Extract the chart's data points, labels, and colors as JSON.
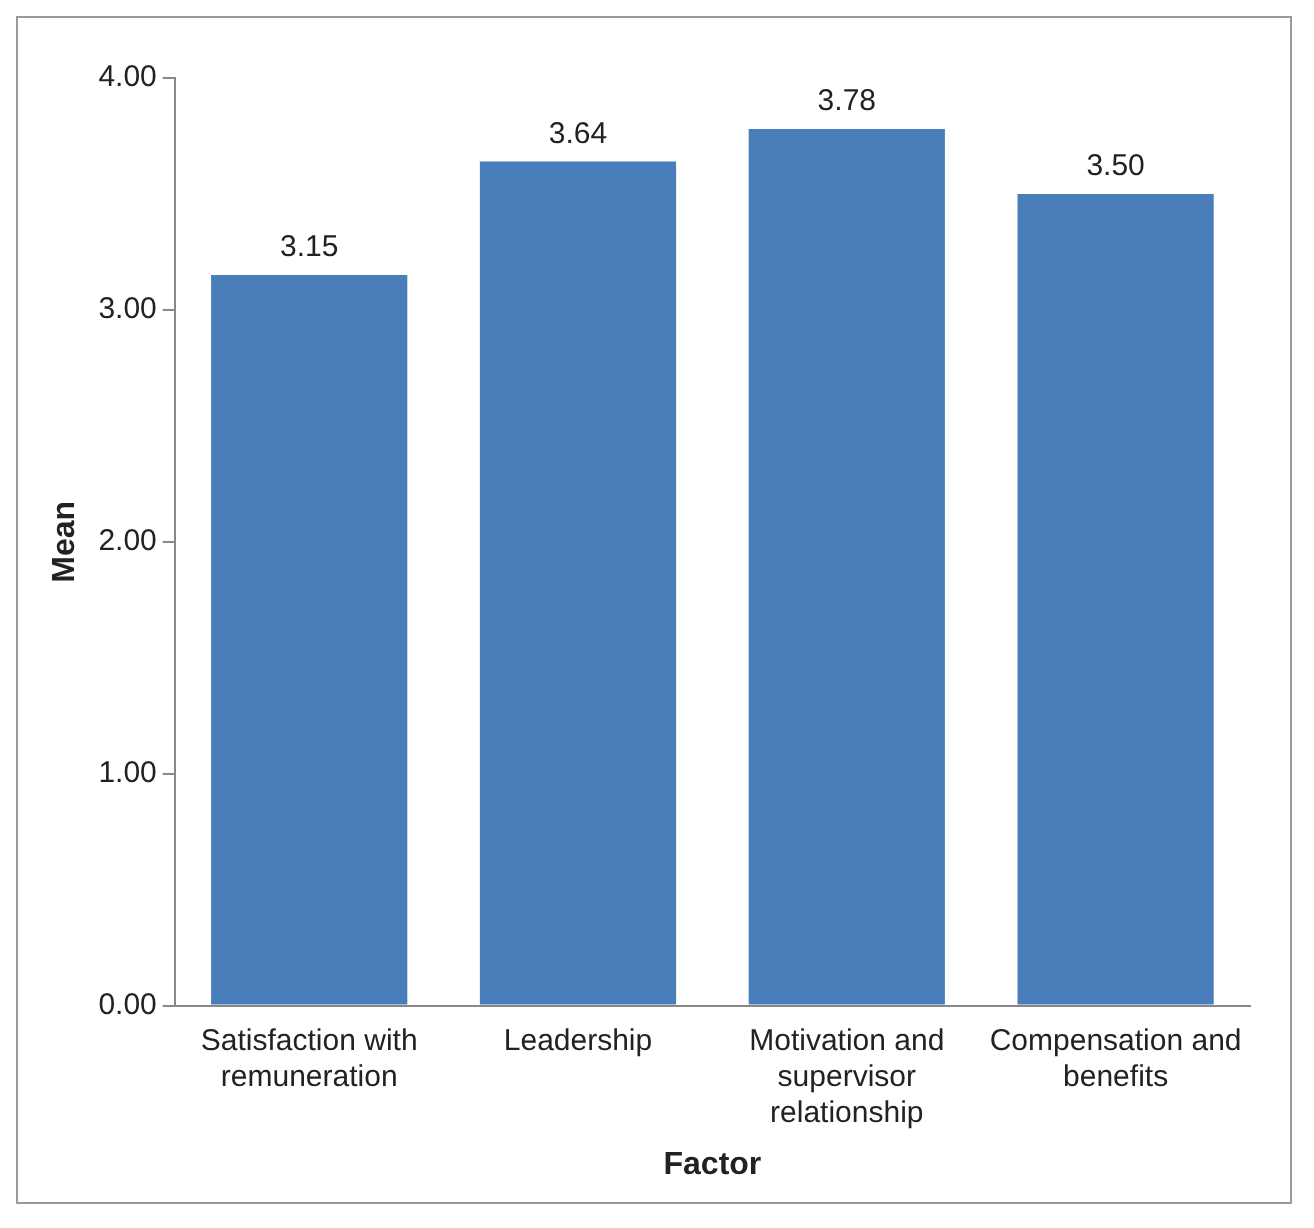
{
  "chart_data": {
    "type": "bar",
    "xlabel": "Factor",
    "ylabel": "Mean",
    "categories": [
      "Satisfaction with remuneration",
      "Leadership",
      "Motivation and supervisor relationship",
      "Compensation and benefits"
    ],
    "values": [
      3.15,
      3.64,
      3.78,
      3.5
    ],
    "value_labels": [
      "3.15",
      "3.64",
      "3.78",
      "3.50"
    ],
    "color": "#4a7ebb",
    "ylim": [
      0,
      4
    ],
    "yticks": [
      {
        "value": 0,
        "label": "0.00"
      },
      {
        "value": 1,
        "label": "1.00"
      },
      {
        "value": 2,
        "label": "2.00"
      },
      {
        "value": 3,
        "label": "3.00"
      },
      {
        "value": 4,
        "label": "4.00"
      }
    ],
    "grid": false,
    "legend": false
  }
}
